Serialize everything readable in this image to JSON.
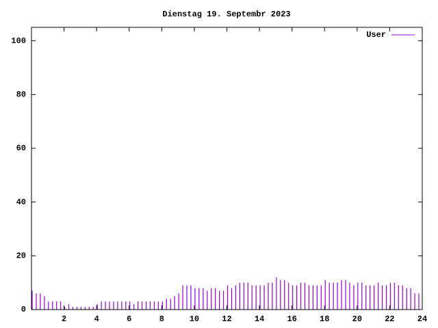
{
  "chart_data": {
    "type": "impulse",
    "title": "Dienstag 19. Septembr 2023",
    "series": [
      {
        "name": "User",
        "color": "#9400d3",
        "x": [
          0,
          0.25,
          0.5,
          0.75,
          1,
          1.25,
          1.5,
          1.75,
          2,
          2.25,
          2.5,
          2.75,
          3,
          3.25,
          3.5,
          3.75,
          4,
          4.25,
          4.5,
          4.75,
          5,
          5.25,
          5.5,
          5.75,
          6,
          6.25,
          6.5,
          6.75,
          7,
          7.25,
          7.5,
          7.75,
          8,
          8.25,
          8.5,
          8.75,
          9,
          9.25,
          9.5,
          9.75,
          10,
          10.25,
          10.5,
          10.75,
          11,
          11.25,
          11.5,
          11.75,
          12,
          12.25,
          12.5,
          12.75,
          13,
          13.25,
          13.5,
          13.75,
          14,
          14.25,
          14.5,
          14.75,
          15,
          15.25,
          15.5,
          15.75,
          16,
          16.25,
          16.5,
          16.75,
          17,
          17.25,
          17.5,
          17.75,
          18,
          18.25,
          18.5,
          18.75,
          19,
          19.25,
          19.5,
          19.75,
          20,
          20.25,
          20.5,
          20.75,
          21,
          21.25,
          21.5,
          21.75,
          22,
          22.25,
          22.5,
          22.75,
          23,
          23.25,
          23.5,
          23.75
        ],
        "values": [
          7,
          6,
          6,
          5,
          3,
          3,
          3,
          3,
          1,
          2,
          1,
          1,
          1,
          1,
          1,
          1,
          2,
          3,
          3,
          3,
          3,
          3,
          3,
          3,
          3,
          2,
          3,
          3,
          3,
          3,
          3,
          3,
          3,
          4,
          4,
          5,
          6,
          9,
          9,
          9,
          8,
          8,
          8,
          7,
          8,
          8,
          7,
          7,
          9,
          8,
          9,
          10,
          10,
          10,
          9,
          9,
          9,
          9,
          10,
          10,
          12,
          11,
          11,
          10,
          9,
          9,
          10,
          10,
          9,
          9,
          9,
          9,
          11,
          10,
          10,
          10,
          11,
          11,
          10,
          9,
          10,
          10,
          9,
          9,
          9,
          10,
          9,
          9,
          10,
          10,
          9,
          9,
          8,
          8,
          6,
          6
        ]
      }
    ],
    "xlim": [
      0,
      24
    ],
    "xticks": [
      2,
      4,
      6,
      8,
      10,
      12,
      14,
      16,
      18,
      20,
      22,
      24
    ],
    "ylim": [
      0,
      105
    ],
    "yticks": [
      0,
      20,
      40,
      60,
      80,
      100
    ]
  }
}
